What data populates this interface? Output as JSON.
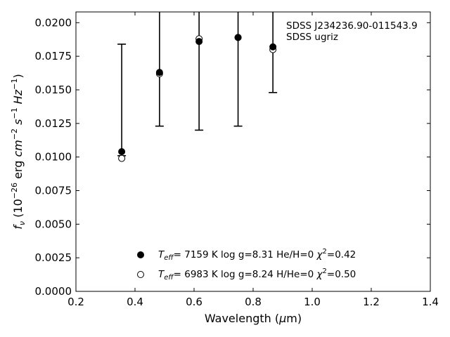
{
  "chart_data": {
    "type": "scatter",
    "xlabel": "Wavelength (μm)",
    "ylabel": "f_ν (10⁻²⁶ erg cm⁻² s⁻¹ Hz⁻¹)",
    "xlim": [
      0.2,
      1.4
    ],
    "ylim": [
      0.0,
      0.0208
    ],
    "grid": false,
    "x_ticks": [
      "0.2",
      "0.4",
      "0.6",
      "0.8",
      "1.0",
      "1.2",
      "1.4"
    ],
    "y_ticks": [
      "0.0000",
      "0.0025",
      "0.0050",
      "0.0075",
      "0.0100",
      "0.0125",
      "0.0150",
      "0.0175",
      "0.0200"
    ],
    "annotations": [
      "SDSS J234236.90-011543.9",
      "SDSS ugriz"
    ],
    "observed": {
      "x": [
        0.355,
        0.483,
        0.617,
        0.749,
        0.867
      ],
      "y": [
        0.0104,
        0.0163,
        0.0186,
        0.0189,
        0.0182
      ],
      "err_low": [
        0.0101,
        0.0123,
        0.012,
        0.0123,
        0.0148
      ],
      "err_high": [
        0.0184,
        0.0215,
        0.0215,
        0.0215,
        0.0215
      ]
    },
    "series": [
      {
        "legend": "T_eff= 7159 K log g=8.31 He/H=0 χ²=0.42",
        "marker": "filled-circle",
        "x": [
          0.355,
          0.483,
          0.617,
          0.749,
          0.867
        ],
        "y": [
          0.0104,
          0.0163,
          0.0186,
          0.0189,
          0.0182
        ]
      },
      {
        "legend": "T_eff= 6983 K log g=8.24 H/He=0 χ²=0.50",
        "marker": "open-circle",
        "x": [
          0.355,
          0.483,
          0.617,
          0.749,
          0.867
        ],
        "y": [
          0.0099,
          0.0162,
          0.0188,
          0.0189,
          0.018
        ]
      }
    ],
    "legend": [
      {
        "teff": "7159 K",
        "logg": "log g=8.31",
        "comp": "He/H=0",
        "chi2": "=0.42"
      },
      {
        "teff": "6983 K",
        "logg": "log g=8.24",
        "comp": "H/He=0",
        "chi2": "=0.50"
      }
    ],
    "legend_placement": "bottom-center",
    "colors": {
      "markers": "#000000",
      "axes": "#000000"
    }
  }
}
